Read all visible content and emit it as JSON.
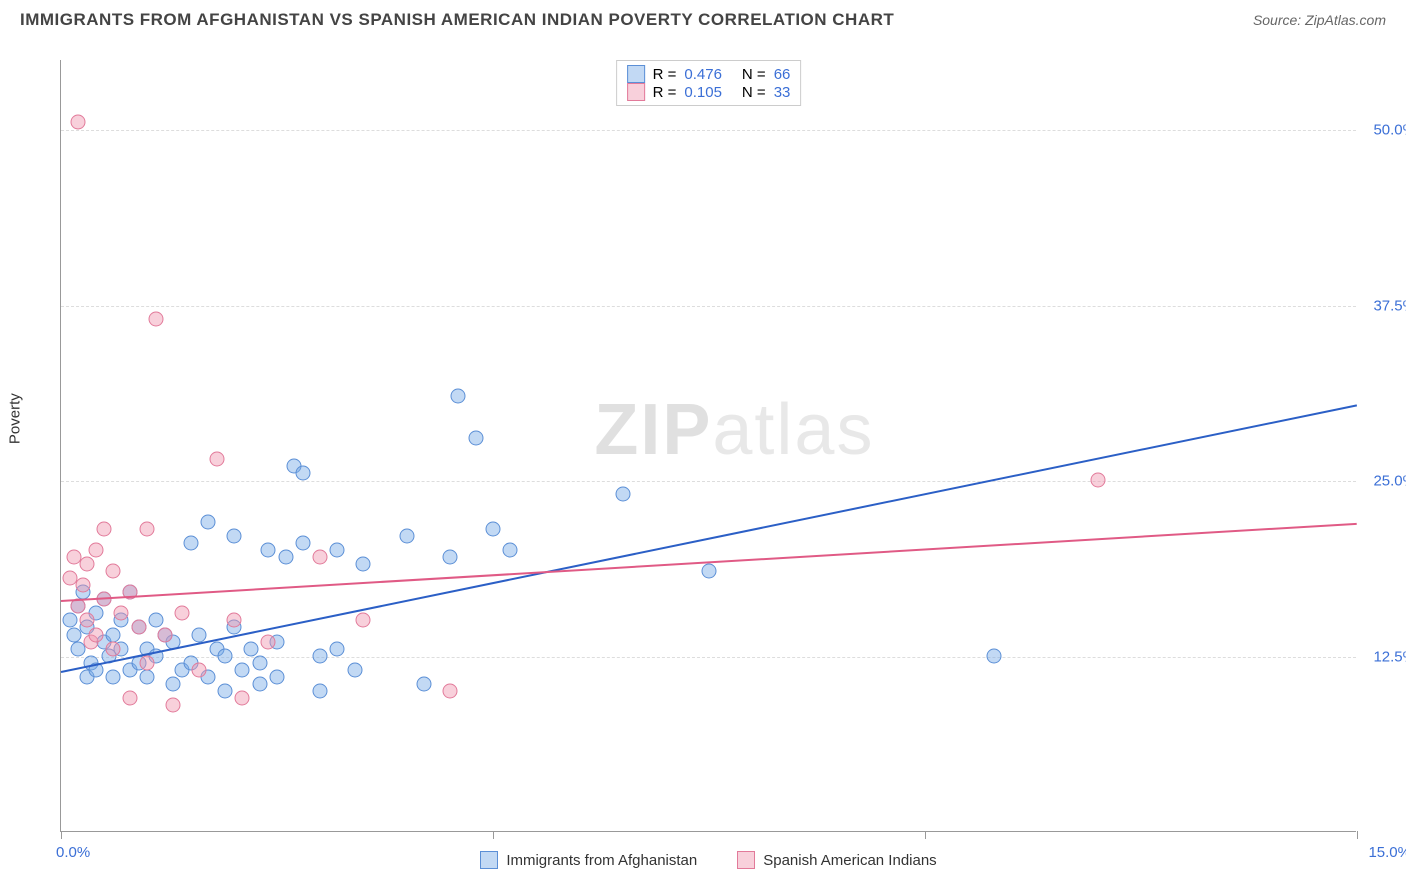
{
  "title": "IMMIGRANTS FROM AFGHANISTAN VS SPANISH AMERICAN INDIAN POVERTY CORRELATION CHART",
  "source": "Source: ZipAtlas.com",
  "ylabel": "Poverty",
  "watermark": {
    "bold": "ZIP",
    "rest": "atlas"
  },
  "chart": {
    "type": "scatter",
    "xlim": [
      0,
      15
    ],
    "ylim": [
      0,
      55
    ],
    "x_ticks": [
      0,
      5,
      10,
      15
    ],
    "x_tick_labels": [
      "0.0%",
      "",
      "",
      "15.0%"
    ],
    "y_ticks": [
      12.5,
      25.0,
      37.5,
      50.0
    ],
    "y_tick_labels": [
      "12.5%",
      "25.0%",
      "37.5%",
      "50.0%"
    ],
    "background_color": "#ffffff",
    "grid_color": "#dddddd",
    "axis_color": "#999999",
    "tick_label_color": "#3b6fd6",
    "point_radius": 7.5,
    "series": [
      {
        "name": "Immigrants from Afghanistan",
        "fill": "rgba(120,170,230,0.45)",
        "stroke": "#5b8fd6",
        "trend_color": "#2b5fc6",
        "R": "0.476",
        "N": "66",
        "trend": {
          "x1": 0,
          "y1": 11.5,
          "x2": 15,
          "y2": 30.5
        },
        "points": [
          [
            0.1,
            15.0
          ],
          [
            0.15,
            14.0
          ],
          [
            0.2,
            16.0
          ],
          [
            0.2,
            13.0
          ],
          [
            0.25,
            17.0
          ],
          [
            0.3,
            11.0
          ],
          [
            0.3,
            14.5
          ],
          [
            0.35,
            12.0
          ],
          [
            0.4,
            15.5
          ],
          [
            0.4,
            11.5
          ],
          [
            0.5,
            13.5
          ],
          [
            0.5,
            16.5
          ],
          [
            0.55,
            12.5
          ],
          [
            0.6,
            14.0
          ],
          [
            0.6,
            11.0
          ],
          [
            0.7,
            13.0
          ],
          [
            0.7,
            15.0
          ],
          [
            0.8,
            11.5
          ],
          [
            0.8,
            17.0
          ],
          [
            0.9,
            12.0
          ],
          [
            0.9,
            14.5
          ],
          [
            1.0,
            13.0
          ],
          [
            1.0,
            11.0
          ],
          [
            1.1,
            15.0
          ],
          [
            1.1,
            12.5
          ],
          [
            1.2,
            14.0
          ],
          [
            1.3,
            10.5
          ],
          [
            1.3,
            13.5
          ],
          [
            1.4,
            11.5
          ],
          [
            1.5,
            12.0
          ],
          [
            1.5,
            20.5
          ],
          [
            1.6,
            14.0
          ],
          [
            1.7,
            11.0
          ],
          [
            1.7,
            22.0
          ],
          [
            1.8,
            13.0
          ],
          [
            1.9,
            12.5
          ],
          [
            1.9,
            10.0
          ],
          [
            2.0,
            14.5
          ],
          [
            2.0,
            21.0
          ],
          [
            2.1,
            11.5
          ],
          [
            2.2,
            13.0
          ],
          [
            2.3,
            12.0
          ],
          [
            2.3,
            10.5
          ],
          [
            2.4,
            20.0
          ],
          [
            2.5,
            11.0
          ],
          [
            2.5,
            13.5
          ],
          [
            2.6,
            19.5
          ],
          [
            2.7,
            26.0
          ],
          [
            2.8,
            20.5
          ],
          [
            2.8,
            25.5
          ],
          [
            3.0,
            12.5
          ],
          [
            3.0,
            10.0
          ],
          [
            3.2,
            13.0
          ],
          [
            3.2,
            20.0
          ],
          [
            3.4,
            11.5
          ],
          [
            3.5,
            19.0
          ],
          [
            4.2,
            10.5
          ],
          [
            4.5,
            19.5
          ],
          [
            4.6,
            31.0
          ],
          [
            4.8,
            28.0
          ],
          [
            5.0,
            21.5
          ],
          [
            5.2,
            20.0
          ],
          [
            6.5,
            24.0
          ],
          [
            7.5,
            18.5
          ],
          [
            10.8,
            12.5
          ],
          [
            4.0,
            21.0
          ]
        ]
      },
      {
        "name": "Spanish American Indians",
        "fill": "rgba(240,150,175,0.45)",
        "stroke": "#e27a9a",
        "trend_color": "#e05a85",
        "R": "0.105",
        "N": "33",
        "trend": {
          "x1": 0,
          "y1": 16.5,
          "x2": 15,
          "y2": 22.0
        },
        "points": [
          [
            0.1,
            18.0
          ],
          [
            0.15,
            19.5
          ],
          [
            0.2,
            16.0
          ],
          [
            0.2,
            50.5
          ],
          [
            0.25,
            17.5
          ],
          [
            0.3,
            15.0
          ],
          [
            0.3,
            19.0
          ],
          [
            0.35,
            13.5
          ],
          [
            0.4,
            20.0
          ],
          [
            0.4,
            14.0
          ],
          [
            0.5,
            16.5
          ],
          [
            0.5,
            21.5
          ],
          [
            0.6,
            13.0
          ],
          [
            0.6,
            18.5
          ],
          [
            0.7,
            15.5
          ],
          [
            0.8,
            9.5
          ],
          [
            0.8,
            17.0
          ],
          [
            0.9,
            14.5
          ],
          [
            1.0,
            21.5
          ],
          [
            1.0,
            12.0
          ],
          [
            1.2,
            14.0
          ],
          [
            1.1,
            36.5
          ],
          [
            1.3,
            9.0
          ],
          [
            1.4,
            15.5
          ],
          [
            1.6,
            11.5
          ],
          [
            1.8,
            26.5
          ],
          [
            2.0,
            15.0
          ],
          [
            2.1,
            9.5
          ],
          [
            2.4,
            13.5
          ],
          [
            3.0,
            19.5
          ],
          [
            3.5,
            15.0
          ],
          [
            4.5,
            10.0
          ],
          [
            12.0,
            25.0
          ]
        ]
      }
    ]
  },
  "legend_top": {
    "r_label": "R =",
    "n_label": "N ="
  },
  "legend_bottom": [
    "Immigrants from Afghanistan",
    "Spanish American Indians"
  ]
}
